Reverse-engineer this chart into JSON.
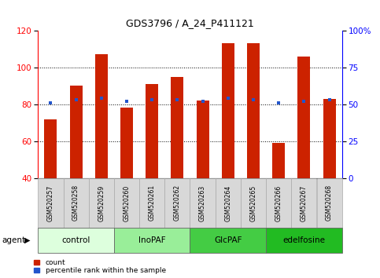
{
  "title": "GDS3796 / A_24_P411121",
  "samples": [
    "GSM520257",
    "GSM520258",
    "GSM520259",
    "GSM520260",
    "GSM520261",
    "GSM520262",
    "GSM520263",
    "GSM520264",
    "GSM520265",
    "GSM520266",
    "GSM520267",
    "GSM520268"
  ],
  "bar_values": [
    72,
    90,
    107,
    78,
    91,
    95,
    82,
    113,
    113,
    59,
    106,
    83
  ],
  "percentile_values": [
    51,
    53,
    54,
    52,
    53,
    53,
    52,
    54,
    53,
    51,
    52,
    53
  ],
  "bar_color": "#cc2200",
  "percentile_color": "#2255cc",
  "ylim_left": [
    40,
    120
  ],
  "ylim_right": [
    0,
    100
  ],
  "yticks_left": [
    40,
    60,
    80,
    100,
    120
  ],
  "yticks_right": [
    0,
    25,
    50,
    75,
    100
  ],
  "yticklabels_right": [
    "0",
    "25",
    "50",
    "75",
    "100%"
  ],
  "groups": [
    {
      "label": "control",
      "start": 0,
      "end": 3,
      "color": "#ddffdd"
    },
    {
      "label": "InoPAF",
      "start": 3,
      "end": 6,
      "color": "#99ee99"
    },
    {
      "label": "GlcPAF",
      "start": 6,
      "end": 9,
      "color": "#44cc44"
    },
    {
      "label": "edelfosine",
      "start": 9,
      "end": 12,
      "color": "#22bb22"
    }
  ],
  "agent_label": "agent",
  "legend_count_label": "count",
  "legend_pct_label": "percentile rank within the sample",
  "background_color": "#ffffff",
  "plot_bg_color": "#ffffff",
  "sample_box_color": "#d8d8d8",
  "grid_color": "#000000",
  "bar_width": 0.5
}
